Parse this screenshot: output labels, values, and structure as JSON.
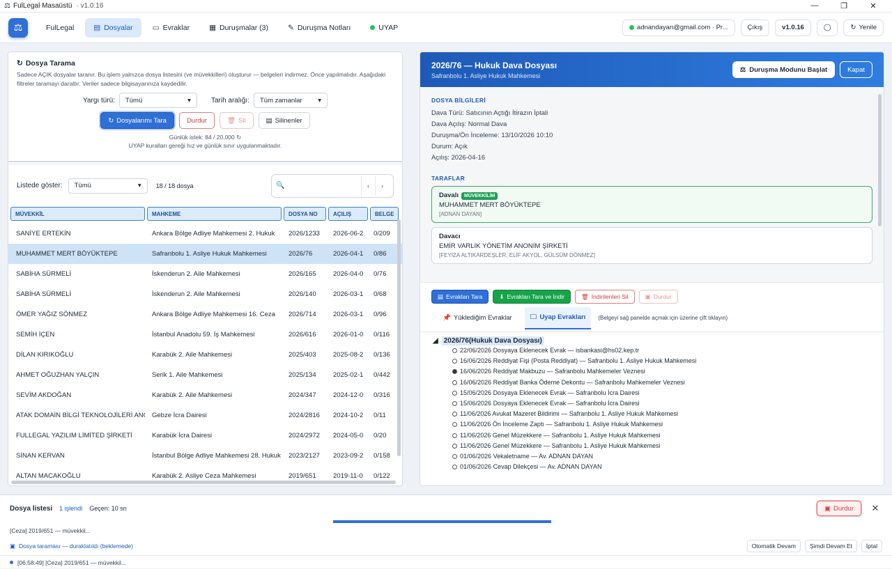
{
  "app": {
    "title": "FulLegal Masaüstü",
    "version": "v1.0.16"
  },
  "window_controls": {
    "minimize": "—",
    "maximize": "❐",
    "close": "✕"
  },
  "nav": {
    "brand": "FulLegal",
    "tabs": [
      {
        "label": "Dosyalar"
      },
      {
        "label": "Evraklar"
      },
      {
        "label": "Duruşmalar (3)"
      },
      {
        "label": "Duruşma Notları"
      },
      {
        "label": "UYAP"
      }
    ],
    "user": "adnandayan@gmail.com · Pr...",
    "logout": "Çıkış",
    "version": "v1.0.16",
    "refresh": "Yenile"
  },
  "scan": {
    "title": "Dosya Tarama",
    "desc": "Sadece AÇIK dosyalar taranır. Bu işlem yalnızca dosya listesini (ve müvekkilleri) oluşturur — belgeleri indirmez. Önce yapılmalıdır. Aşağıdaki filtreler taramayı daraltır. Veriler sadece bilgisayarınıza kaydedilir.",
    "yargi_label": "Yargı türü:",
    "yargi_value": "Tümü",
    "tarih_label": "Tarih aralığı:",
    "tarih_value": "Tüm zamanlar",
    "btn_scan": "Dosyalarımı Tara",
    "btn_stop": "Durdur",
    "btn_delete": "Sil",
    "btn_deleted": "Silinenler",
    "daily": "Günlük istek: 84 / 20.000",
    "rules": "UYAP kuralları gereği hız ve günlük sınır uygulanmaktadır."
  },
  "list": {
    "show_label": "Listede göster:",
    "show_value": "Tümü",
    "count": "18 / 18 dosya",
    "columns": [
      "MÜVEKKİL",
      "MAHKEME",
      "DOSYA NO",
      "AÇILIŞ",
      "BELGE"
    ],
    "rows": [
      [
        "SANİYE ERTEKİN",
        "Ankara Bölge Adliye Mahkemesi 2. Hukuk",
        "2026/1233",
        "2026-06-2",
        "0/209"
      ],
      [
        "MUHAMMET MERT BÖYÜKTEPE",
        "Safranbolu 1. Asliye Hukuk Mahkemesi",
        "2026/76",
        "2026-04-1",
        "0/86"
      ],
      [
        "SABİHA SÜRMELİ",
        "İskenderun 2. Aile Mahkemesi",
        "2026/165",
        "2026-04-0",
        "0/76"
      ],
      [
        "SABİHA SÜRMELİ",
        "İskenderun 2. Aile Mahkemesi",
        "2026/140",
        "2026-03-1",
        "0/68"
      ],
      [
        "ÖMER YAĞIZ SÖNMEZ",
        "Ankara Bölge Adliye Mahkemesi 16. Ceza",
        "2026/714",
        "2026-03-1",
        "0/96"
      ],
      [
        "SEMİH İÇEN",
        "İstanbul Anadolu 59. İş Mahkemesi",
        "2026/616",
        "2026-01-0",
        "0/116"
      ],
      [
        "DİLAN KIRIKOĞLU",
        "Karabük 2. Aile Mahkemesi",
        "2025/403",
        "2025-08-2",
        "0/136"
      ],
      [
        "AHMET OĞUZHAN YALÇIN",
        "Serik 1. Aile Mahkemesi",
        "2025/134",
        "2025-02-1",
        "0/442"
      ],
      [
        "SEVİM AKDOĞAN",
        "Karabük 2. Aile Mahkemesi",
        "2024/347",
        "2024-12-0",
        "0/316"
      ],
      [
        "ATAK DOMAİN BİLGİ TEKNOLOJİLERİ ANONİM",
        "Gebze İcra Dairesi",
        "2024/2816",
        "2024-10-2",
        "0/11"
      ],
      [
        "FULLEGAL YAZILIM LİMİTED ŞİRKETİ",
        "Karabük İcra Dairesi",
        "2024/2972",
        "2024-05-0",
        "0/20"
      ],
      [
        "SİNAN KERVAN",
        "İstanbul Bölge Adliye Mahkemesi 28. Hukuk",
        "2023/2127",
        "2023-09-2",
        "0/158"
      ],
      [
        "ALTAN MACAKOĞLU",
        "Karabük 2. Asliye Ceza Mahkemesi",
        "2019/651",
        "2019-11-0",
        "0/122"
      ]
    ]
  },
  "detail": {
    "title": "2026/76 — Hukuk Dava Dosyası",
    "court": "Safranbolu 1. Asliye Hukuk Mahkemesi",
    "btn_hearing": "Duruşma Modunu Başlat",
    "btn_close": "Kapat",
    "info_title": "DOSYA BİLGİLERİ",
    "info": [
      "Dava Türü: Satıcının Açtığı İtirazın İptali",
      "Dava Açılış: Normal Dava",
      "Duruşma/Ön İnceleme: 13/10/2026 10:10",
      "Durum: Açık",
      "Açılış: 2026-04-16"
    ],
    "parties_title": "TARAFLAR",
    "p1_role": "Davalı",
    "p1_badge": "MÜVEKKİLİM",
    "p1_name": "MUHAMMET MERT BÖYÜKTEPE",
    "p1_lawyer": "[ADNAN DAYAN]",
    "p2_role": "Davacı",
    "p2_name": "EMİR VARLIK YÖNETİM ANONİM ŞİRKETİ",
    "p2_lawyer": "[FEYİZA ALTIKARDEŞLER, ELİF AKYOL, GÜLSÜM DÖNMEZ]",
    "act_scan": "Evrakları Tara",
    "act_scan_dl": "Evrakları Tara ve İndir",
    "act_delete": "İndirilenleri Sil",
    "act_stop": "Durdur",
    "tab1": "Yüklediğim Evraklar",
    "tab2": "Uyap Evrakları",
    "hint": "(Belgeyi sağ panelde açmak için üzerine çift tıklayın)",
    "tree_root": "2026/76(Hukuk Dava Dosyası)",
    "docs": [
      [
        "22/06/2026",
        "Dosyaya Eklenecek Evrak",
        "isbankasi@hs02.kep.tr",
        false
      ],
      [
        "16/06/2026",
        "Reddiyat Fişi (Posta Reddiyat)",
        "Safranbolu 1. Asliye Hukuk Mahkemesi",
        false
      ],
      [
        "16/06/2026",
        "Reddiyat Makbuzu",
        "Safranbolu Mahkemeler Veznesi",
        true
      ],
      [
        "16/06/2026",
        "Reddiyat Banka Ödeme Dekontu",
        "Safranbolu Mahkemeler Veznesi",
        false
      ],
      [
        "15/06/2026",
        "Dosyaya Eklenecek Evrak",
        "Safranbolu İcra Dairesi",
        false
      ],
      [
        "15/06/2026",
        "Dosyaya Eklenecek Evrak",
        "Safranbolu İcra Dairesi",
        false
      ],
      [
        "11/06/2026",
        "Avukat Mazeret Bildirimi",
        "Safranbolu 1. Asliye Hukuk Mahkemesi",
        false
      ],
      [
        "11/06/2026",
        "Ön İnceleme Zaptı",
        "Safranbolu 1. Asliye Hukuk Mahkemesi",
        false
      ],
      [
        "11/06/2026",
        "Genel Müzekkere",
        "Safranbolu 1. Asliye Hukuk Mahkemesi",
        false
      ],
      [
        "11/06/2026",
        "Genel Müzekkere",
        "Safranbolu 1. Asliye Hukuk Mahkemesi",
        false
      ],
      [
        "01/06/2026",
        "Vekaletname",
        "Av. ADNAN DAYAN",
        false
      ],
      [
        "01/06/2026",
        "Cevap Dilekçesi",
        "Av. ADNAN DAYAN",
        false
      ]
    ]
  },
  "bottom": {
    "title": "Dosya listesi",
    "processed": "1 işlendi",
    "elapsed": "Geçen: 10 sn",
    "stop": "Durdur",
    "current": "[Ceza] 2019/651 — müvekkil...",
    "status": "Dosya taraması — duraklatıldı (beklemede)",
    "auto": "Otomatik Devam",
    "now": "Şimdi Devam Et",
    "cancel": "İptal",
    "log": "[06:58:49] [Ceza] 2019/651 — müvekkil..."
  }
}
